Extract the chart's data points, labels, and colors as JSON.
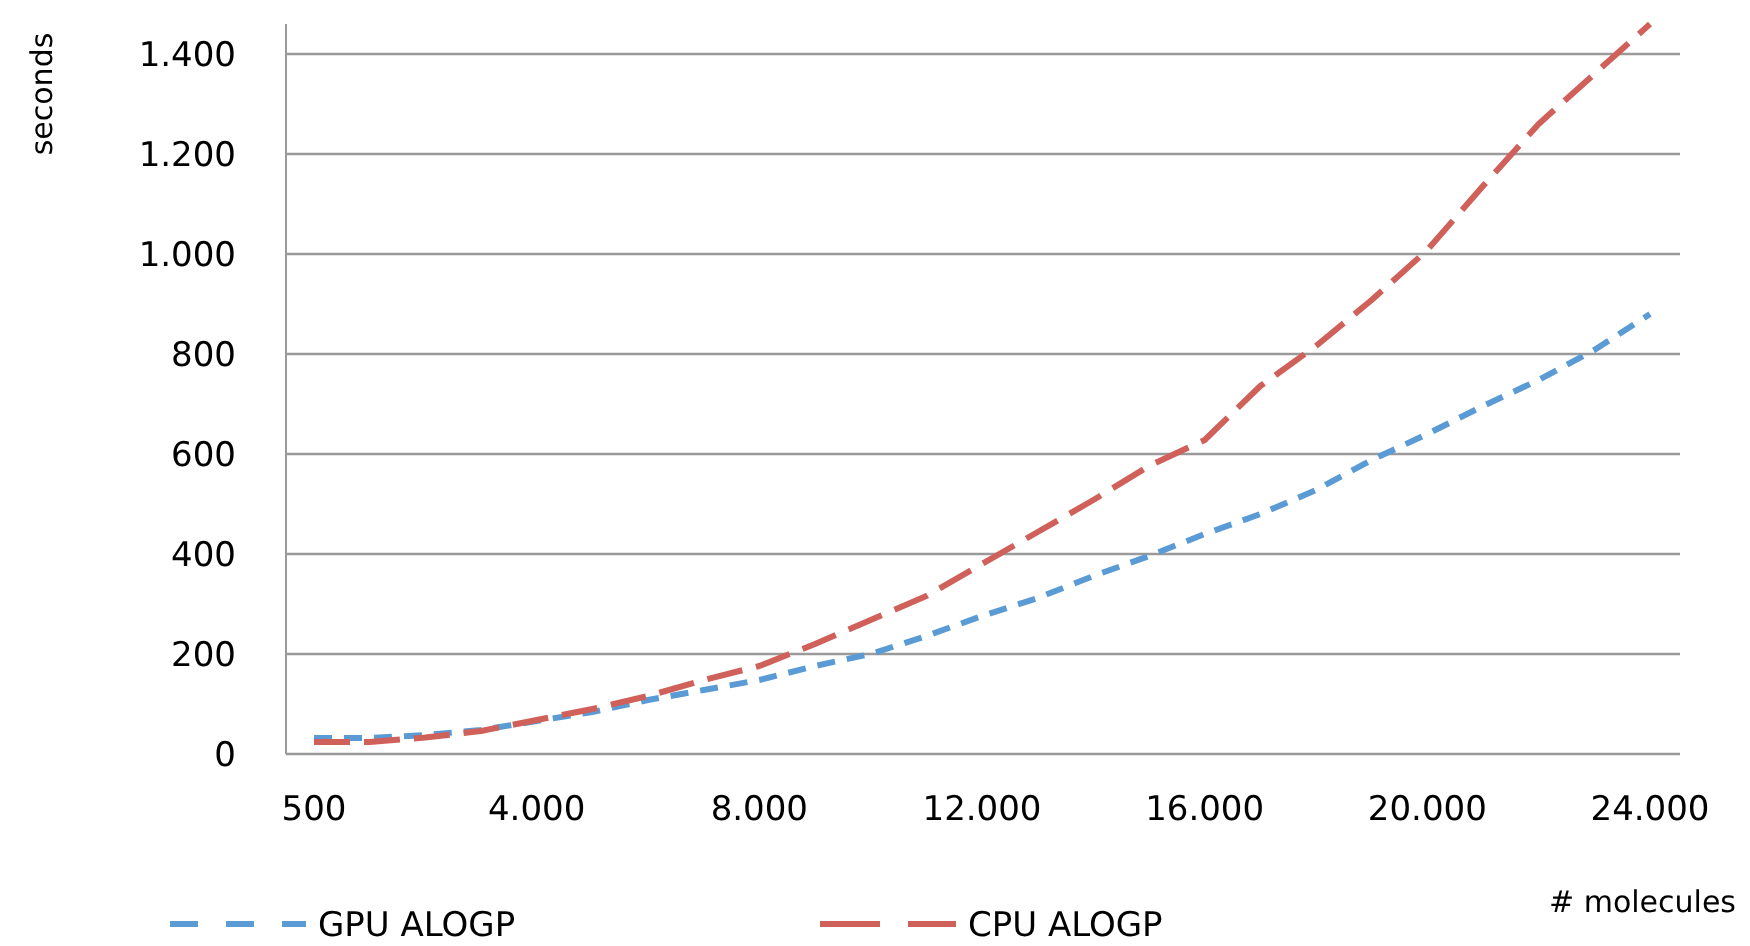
{
  "chart_data": {
    "type": "line",
    "xlabel": "# molecules",
    "ylabel": "seconds",
    "categories": [
      "500",
      null,
      null,
      null,
      "4.000",
      null,
      null,
      null,
      "8.000",
      null,
      null,
      null,
      "12.000",
      null,
      null,
      null,
      "16.000",
      null,
      null,
      null,
      "20.000",
      null,
      null,
      null,
      "24.000"
    ],
    "series": [
      {
        "name": "GPU  ALOGP",
        "color": "#5b9bd5",
        "line_style": "dashed",
        "values": [
          32,
          32,
          38,
          48,
          66,
          84,
          108,
          128,
          148,
          176,
          200,
          236,
          276,
          312,
          356,
          396,
          440,
          480,
          528,
          588,
          640,
          696,
          748,
          808,
          880
        ]
      },
      {
        "name": "CPU  ALOGP",
        "color": "#d0605a",
        "line_style": "dashed",
        "values": [
          24,
          24,
          33,
          46,
          68,
          90,
          116,
          148,
          176,
          220,
          268,
          316,
          380,
          444,
          508,
          576,
          628,
          736,
          816,
          908,
          1008,
          1136,
          1260,
          1360,
          1460
        ]
      }
    ],
    "ylim": [
      0,
      1460
    ],
    "yticks": [
      0,
      200,
      400,
      600,
      800,
      {
        "value": 1000,
        "label": "1.000"
      },
      {
        "value": 1200,
        "label": "1.200"
      },
      {
        "value": 1400,
        "label": "1.400"
      }
    ],
    "grid": "y",
    "legend": "bottom left",
    "marker": "none"
  }
}
